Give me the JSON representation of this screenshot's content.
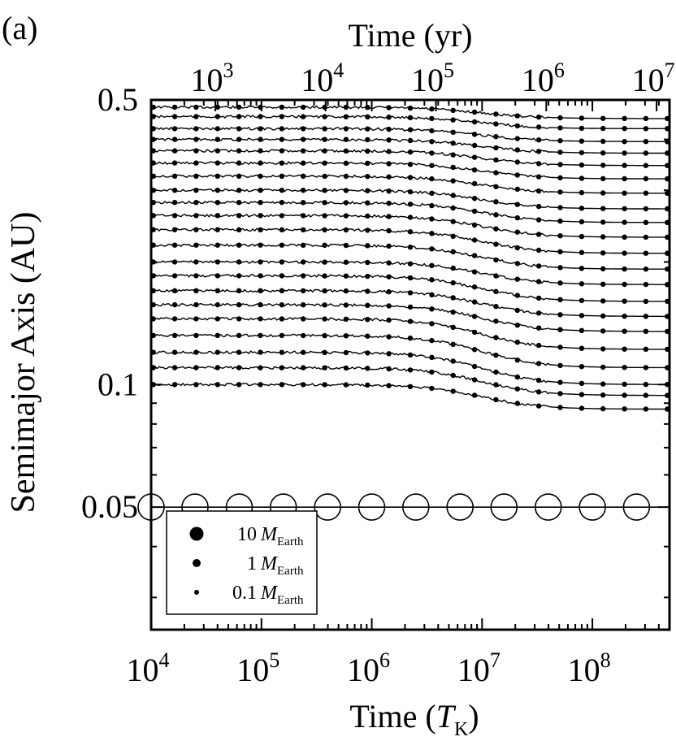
{
  "panel_label": "(a)",
  "chart_data": {
    "type": "line",
    "top_axis": {
      "label": "Time (yr)",
      "scale": "log",
      "ticks": [
        {
          "base": "10",
          "exp": "3"
        },
        {
          "base": "10",
          "exp": "4"
        },
        {
          "base": "10",
          "exp": "5"
        },
        {
          "base": "10",
          "exp": "6"
        },
        {
          "base": "10",
          "exp": "7"
        }
      ]
    },
    "x_axis": {
      "label_main": "Time (",
      "label_italic": "T",
      "label_sub": "K",
      "label_close": ")",
      "scale": "log",
      "range": [
        10000,
        500000000
      ],
      "ticks": [
        {
          "base": "10",
          "exp": "4"
        },
        {
          "base": "10",
          "exp": "5"
        },
        {
          "base": "10",
          "exp": "6"
        },
        {
          "base": "10",
          "exp": "7"
        },
        {
          "base": "10",
          "exp": "8"
        }
      ]
    },
    "y_axis": {
      "label": "Semimajor Axis (AU)",
      "scale": "log",
      "range": [
        0.025,
        0.5
      ],
      "ticks": [
        "0.5",
        "0.1",
        "0.05"
      ]
    },
    "planet_orbit": {
      "a": 0.05,
      "mass_earth": 10,
      "marker_x": [
        10000,
        25000,
        63000,
        158000,
        398000,
        1000000,
        2510000,
        6310000,
        15800000,
        39800000,
        100000000,
        251000000
      ]
    },
    "tracks": [
      {
        "a_start": 0.48,
        "a_end": 0.45,
        "mass_earth": 1
      },
      {
        "a_start": 0.455,
        "a_end": 0.425,
        "mass_earth": 1
      },
      {
        "a_start": 0.425,
        "a_end": 0.395,
        "mass_earth": 1
      },
      {
        "a_start": 0.4,
        "a_end": 0.37,
        "mass_earth": 1
      },
      {
        "a_start": 0.375,
        "a_end": 0.345,
        "mass_earth": 1
      },
      {
        "a_start": 0.35,
        "a_end": 0.32,
        "mass_earth": 1
      },
      {
        "a_start": 0.325,
        "a_end": 0.295,
        "mass_earth": 1
      },
      {
        "a_start": 0.3,
        "a_end": 0.27,
        "mass_earth": 1
      },
      {
        "a_start": 0.28,
        "a_end": 0.25,
        "mass_earth": 1
      },
      {
        "a_start": 0.26,
        "a_end": 0.23,
        "mass_earth": 1
      },
      {
        "a_start": 0.24,
        "a_end": 0.21,
        "mass_earth": 1
      },
      {
        "a_start": 0.22,
        "a_end": 0.192,
        "mass_earth": 1
      },
      {
        "a_start": 0.2,
        "a_end": 0.176,
        "mass_earth": 1
      },
      {
        "a_start": 0.185,
        "a_end": 0.16,
        "mass_earth": 1
      },
      {
        "a_start": 0.17,
        "a_end": 0.147,
        "mass_earth": 1
      },
      {
        "a_start": 0.157,
        "a_end": 0.135,
        "mass_earth": 1
      },
      {
        "a_start": 0.145,
        "a_end": 0.122,
        "mass_earth": 1
      },
      {
        "a_start": 0.132,
        "a_end": 0.11,
        "mass_earth": 1
      },
      {
        "a_start": 0.12,
        "a_end": 0.1,
        "mass_earth": 1
      },
      {
        "a_start": 0.11,
        "a_end": 0.094,
        "mass_earth": 1
      },
      {
        "a_start": 0.1,
        "a_end": 0.087,
        "mass_earth": 1
      }
    ],
    "legend": {
      "position": "bottom-left",
      "entries": [
        {
          "value": "10",
          "symbol": "M",
          "sub": "Earth",
          "size": "large"
        },
        {
          "value": "1",
          "symbol": "M",
          "sub": "Earth",
          "size": "medium"
        },
        {
          "value": "0.1",
          "symbol": "M",
          "sub": "Earth",
          "size": "small"
        }
      ]
    },
    "grid": false
  }
}
